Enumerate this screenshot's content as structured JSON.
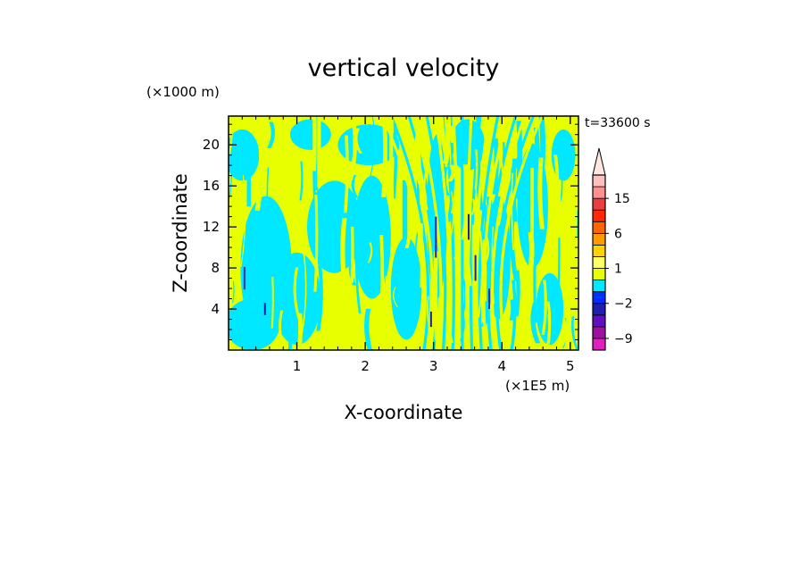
{
  "chart_data": {
    "type": "heatmap",
    "title": "vertical velocity",
    "xlabel": "X-coordinate",
    "ylabel": "Z-coordinate",
    "x_unit": "(×1E5 m)",
    "y_unit": "(×1000 m)",
    "time_label": "t=33600 s",
    "xlim": [
      0,
      5.12
    ],
    "ylim": [
      0,
      22.8
    ],
    "x_ticks": [
      "1",
      "2",
      "3",
      "4",
      "5"
    ],
    "x_tick_values": [
      1,
      2,
      3,
      4,
      5
    ],
    "y_ticks": [
      "4",
      "8",
      "12",
      "16",
      "20"
    ],
    "y_tick_values": [
      4,
      8,
      12,
      16,
      20
    ],
    "colorbar": {
      "levels": [
        -12,
        -9,
        -6,
        -3,
        -2,
        -1,
        0,
        1,
        2,
        4,
        6,
        8,
        12,
        15,
        18,
        24
      ],
      "colors": [
        "#e020c0",
        "#a010a0",
        "#6010c0",
        "#2020b0",
        "#0030ff",
        "#00e8ff",
        "#e8ff00",
        "#ffff66",
        "#ffd200",
        "#ff9a00",
        "#ff6600",
        "#ff2800",
        "#e84040",
        "#ff9090",
        "#ffc0c0"
      ],
      "labels": [
        "15",
        "6",
        "1",
        "−2",
        "−9"
      ],
      "label_values": [
        15,
        6,
        1,
        -2,
        -9
      ],
      "extend": "max",
      "extend_color": "#ffe8e0"
    },
    "field_summary": "Dominant values alternate between slightly negative (cyan, -1 to 0) and slightly positive (yellow, 0 to 1) in vertically elongated bands; isolated narrow strong downdrafts (dark blue) near x=0.2, 3.0, 3.5, 3.6 and 3.8.",
    "colors": {
      "negative_weak": "#00e8ff",
      "positive_weak": "#e8ff00",
      "strong_down": "#2020b0"
    }
  }
}
